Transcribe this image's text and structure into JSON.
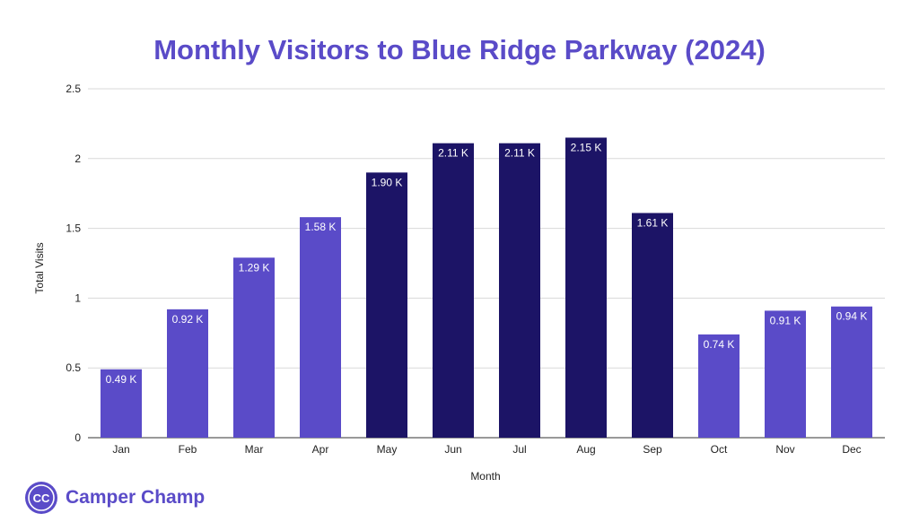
{
  "chart_data": {
    "type": "bar",
    "title": "Monthly Visitors to Blue Ridge Parkway (2024)",
    "xlabel": "Month",
    "ylabel": "Total Visits",
    "ylim": [
      0,
      2.5
    ],
    "yticks": [
      "0",
      "0.5",
      "1",
      "1.5",
      "2",
      "2.5"
    ],
    "grid": true,
    "categories": [
      "Jan",
      "Feb",
      "Mar",
      "Apr",
      "May",
      "Jun",
      "Jul",
      "Aug",
      "Sep",
      "Oct",
      "Nov",
      "Dec"
    ],
    "values": [
      0.49,
      0.92,
      1.29,
      1.58,
      1.9,
      2.11,
      2.11,
      2.15,
      1.61,
      0.74,
      0.91,
      0.94
    ],
    "data_labels": [
      "0.49 K",
      "0.92 K",
      "1.29 K",
      "1.58 K",
      "1.90 K",
      "2.11 K",
      "2.11 K",
      "2.15 K",
      "1.61 K",
      "0.74 K",
      "0.91 K",
      "0.94 K"
    ],
    "highlighted": [
      false,
      false,
      false,
      false,
      true,
      true,
      true,
      true,
      true,
      false,
      false,
      false
    ],
    "colors": {
      "bar": "#5a4bc8",
      "bar_highlight": "#1c1466",
      "bar_label": "#ffffff",
      "grid": "#d9d9d9",
      "axis_text": "#222222"
    }
  },
  "brand": {
    "initials": "CC",
    "name": "Camper Champ",
    "color": "#5a4bc8"
  }
}
